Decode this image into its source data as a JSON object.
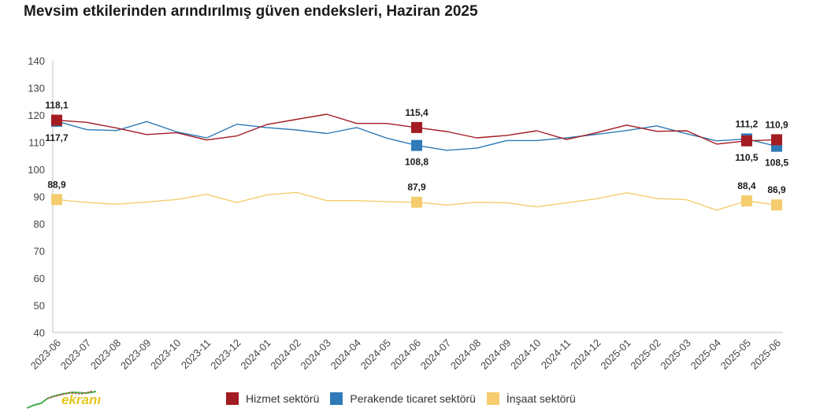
{
  "title": "Mevsim etkilerinden arındırılmış güven endeksleri, Haziran 2025",
  "logo_text": "ekranı",
  "chart_data": {
    "type": "line",
    "categories": [
      "2023-06",
      "2023-07",
      "2023-08",
      "2023-09",
      "2023-10",
      "2023-11",
      "2023-12",
      "2024-01",
      "2024-02",
      "2024-03",
      "2024-04",
      "2024-05",
      "2024-06",
      "2024-07",
      "2024-08",
      "2024-09",
      "2024-10",
      "2024-11",
      "2024-12",
      "2025-01",
      "2025-02",
      "2025-03",
      "2025-04",
      "2025-05",
      "2025-06"
    ],
    "ylim": [
      40,
      140
    ],
    "yticks": [
      40,
      50,
      60,
      70,
      80,
      90,
      100,
      110,
      120,
      130,
      140
    ],
    "grid": false,
    "legend_position": "bottom",
    "series": [
      {
        "name": "Hizmet sektörü",
        "color": "#a31c22",
        "values": [
          118.1,
          117.3,
          115.2,
          112.8,
          113.5,
          110.8,
          112.3,
          116.5,
          118.4,
          120.3,
          116.9,
          116.9,
          115.4,
          113.9,
          111.6,
          112.5,
          114.2,
          111.0,
          113.5,
          116.3,
          114.0,
          114.2,
          109.3,
          110.5,
          110.9
        ],
        "labels": [
          {
            "index": 0,
            "text": "118,1",
            "pos": "above"
          },
          {
            "index": 12,
            "text": "115,4",
            "pos": "above"
          },
          {
            "index": 23,
            "text": "110,5",
            "pos": "below"
          },
          {
            "index": 24,
            "text": "110,9",
            "pos": "above"
          }
        ]
      },
      {
        "name": "Perakende ticaret sektörü",
        "color": "#2f7ab8",
        "values": [
          117.7,
          114.6,
          114.3,
          117.6,
          113.8,
          111.6,
          116.6,
          115.4,
          114.5,
          113.2,
          115.4,
          111.5,
          108.8,
          107.0,
          107.8,
          110.6,
          110.6,
          111.6,
          112.9,
          114.3,
          116.0,
          113.1,
          110.5,
          111.2,
          108.5
        ],
        "labels": [
          {
            "index": 0,
            "text": "117,7",
            "pos": "below"
          },
          {
            "index": 12,
            "text": "108,8",
            "pos": "below"
          },
          {
            "index": 23,
            "text": "111,2",
            "pos": "above"
          },
          {
            "index": 24,
            "text": "108,5",
            "pos": "below"
          }
        ]
      },
      {
        "name": "İnşaat sektörü",
        "color": "#f5cc6e",
        "values": [
          88.9,
          87.8,
          87.2,
          88.0,
          88.9,
          90.8,
          87.8,
          90.6,
          91.5,
          88.5,
          88.5,
          88.1,
          87.9,
          86.9,
          87.9,
          87.7,
          86.2,
          87.7,
          89.2,
          91.4,
          89.3,
          88.8,
          85.0,
          88.4,
          86.9
        ],
        "labels": [
          {
            "index": 0,
            "text": "88,9",
            "pos": "above"
          },
          {
            "index": 12,
            "text": "87,9",
            "pos": "above"
          },
          {
            "index": 23,
            "text": "88,4",
            "pos": "above"
          },
          {
            "index": 24,
            "text": "86,9",
            "pos": "above"
          }
        ]
      }
    ],
    "marker_indices": [
      0,
      12,
      23,
      24
    ]
  }
}
